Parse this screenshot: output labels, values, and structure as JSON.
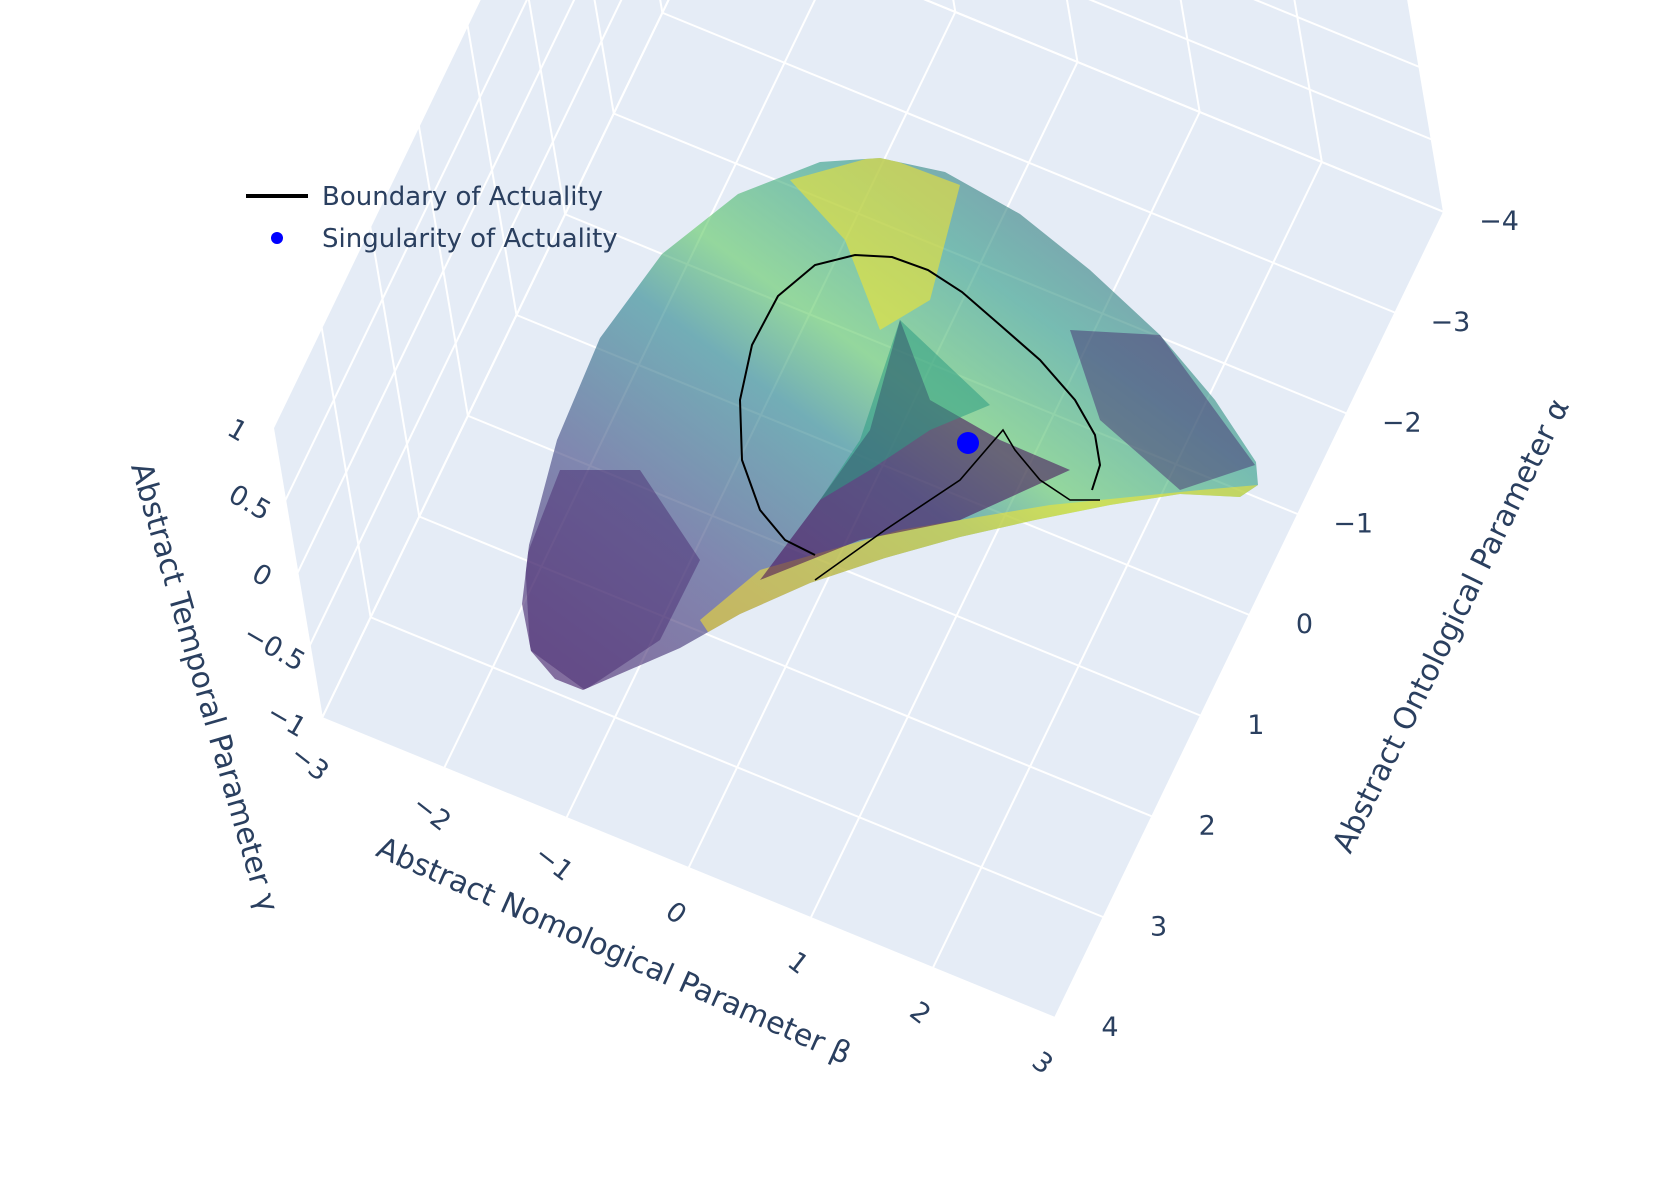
{
  "chart_data": {
    "type": "surface3d",
    "title": "",
    "axes": {
      "x": {
        "label": "Abstract Ontological Parameter α",
        "ticks": [
          "−4",
          "−3",
          "−2",
          "−1",
          "0",
          "1",
          "2",
          "3",
          "4"
        ],
        "range": [
          -4,
          4
        ]
      },
      "y": {
        "label": "Abstract Nomological Parameter β",
        "ticks": [
          "−3",
          "−2",
          "−1",
          "0",
          "1",
          "2",
          "3"
        ],
        "range": [
          -3,
          3
        ]
      },
      "z": {
        "label": "Abstract Temporal Parameter γ",
        "ticks": [
          "−1",
          "−0.5",
          "0",
          "0.5",
          "1"
        ],
        "range": [
          -1,
          1
        ]
      }
    },
    "surface": {
      "colorscale": "viridis",
      "colors": [
        "#440154",
        "#3b528b",
        "#21918c",
        "#5ec962",
        "#fde725"
      ],
      "opacity": 0.6
    },
    "series": [
      {
        "name": "Boundary of Actuality",
        "type": "line",
        "color": "#000000"
      },
      {
        "name": "Singularity of Actuality",
        "type": "marker",
        "color": "#0000ff",
        "point": {
          "x": 0,
          "y": 0,
          "z": 0
        }
      }
    ],
    "grid": true,
    "background": "#e5ecf6",
    "legend_placement": "top-left"
  }
}
